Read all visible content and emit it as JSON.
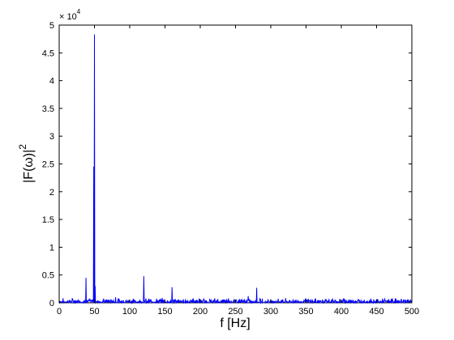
{
  "chart_data": {
    "type": "line",
    "xlabel": "f [Hz]",
    "ylabel": "|F(ω)|",
    "ylabel_superscript": "2",
    "y_multiplier": "× 10",
    "y_multiplier_exponent": "4",
    "xlim": [
      0,
      500
    ],
    "ylim": [
      0,
      5
    ],
    "xticks": [
      0,
      50,
      100,
      150,
      200,
      250,
      300,
      350,
      400,
      450,
      500
    ],
    "yticks": [
      0,
      0.5,
      1,
      1.5,
      2,
      2.5,
      3,
      3.5,
      4,
      4.5,
      5
    ],
    "grid": false,
    "series": [
      {
        "color": "#0000ff",
        "noise_level": 0.03,
        "peaks": [
          {
            "x": 38,
            "y": 0.45
          },
          {
            "x": 49,
            "y": 2.45
          },
          {
            "x": 50,
            "y": 4.83
          },
          {
            "x": 51,
            "y": 0.3
          },
          {
            "x": 80,
            "y": 0.1
          },
          {
            "x": 120,
            "y": 0.48
          },
          {
            "x": 160,
            "y": 0.28
          },
          {
            "x": 190,
            "y": 0.08
          },
          {
            "x": 240,
            "y": 0.08
          },
          {
            "x": 268,
            "y": 0.12
          },
          {
            "x": 280,
            "y": 0.27
          },
          {
            "x": 405,
            "y": 0.06
          },
          {
            "x": 440,
            "y": 0.05
          }
        ]
      }
    ]
  }
}
